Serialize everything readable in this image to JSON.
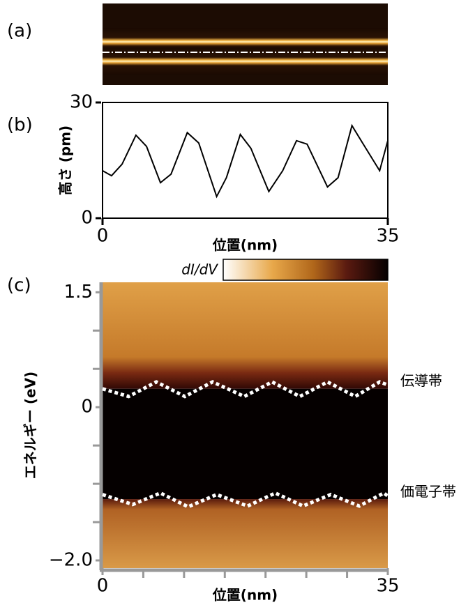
{
  "chart_data": [
    {
      "type": "image",
      "label": "(a)"
    },
    {
      "type": "line",
      "label": "(b)",
      "xlabel": "位置(nm)",
      "ylabel": "高さ (pm)",
      "xlim": [
        0,
        35
      ],
      "ylim": [
        0,
        30
      ],
      "xticks": [
        0,
        35
      ],
      "yticks": [
        0,
        30
      ],
      "series": [
        {
          "color": "#000000",
          "x": [
            0,
            1.1,
            2.4,
            4.1,
            5.4,
            7.1,
            8.4,
            10.4,
            11.8,
            14.0,
            15.2,
            16.9,
            18.2,
            20.4,
            22.1,
            23.8,
            25.1,
            27.6,
            28.9,
            30.6,
            31.9,
            34.0,
            35
          ],
          "values": [
            12.3,
            11,
            14,
            21.5,
            18.6,
            9.2,
            11.4,
            22.2,
            19.5,
            5.6,
            10.5,
            21.7,
            18.1,
            6.9,
            12.3,
            20.1,
            19.2,
            8.1,
            10.5,
            24,
            19.5,
            12.3,
            20.1
          ]
        }
      ]
    },
    {
      "type": "heatmap",
      "label": "(c)",
      "xlabel": "位置(nm)",
      "ylabel": "エネルギー (eV)",
      "colorbar_label": "dI/dV",
      "xlim": [
        0,
        35
      ],
      "ylim": [
        -2.1,
        1.63
      ],
      "xticks": [
        0,
        35
      ],
      "xminor": [
        5,
        10,
        15,
        20,
        25,
        30
      ],
      "yticks": [
        1.5,
        0,
        {
          "value": -2,
          "label": "−2.0"
        }
      ],
      "yminor": [
        1,
        0.5,
        -0.5,
        -1,
        -1.5
      ],
      "series": [
        {
          "name": "伝導帯",
          "color": "#ffffff",
          "x": [
            0,
            3.2,
            6.6,
            10.1,
            13.5,
            17.4,
            20.8,
            24.2,
            27.6,
            31.0,
            34.0,
            35
          ],
          "values": [
            0.24,
            0.14,
            0.33,
            0.14,
            0.33,
            0.14,
            0.33,
            0.14,
            0.33,
            0.14,
            0.33,
            0.29
          ]
        },
        {
          "name": "価電子帯",
          "color": "#ffffff",
          "x": [
            0,
            3.7,
            7.1,
            10.5,
            14.0,
            17.8,
            21.2,
            24.6,
            28.0,
            31.5,
            34.5,
            35
          ],
          "values": [
            -1.14,
            -1.27,
            -1.12,
            -1.3,
            -1.14,
            -1.29,
            -1.12,
            -1.29,
            -1.14,
            -1.29,
            -1.12,
            -1.16
          ]
        }
      ]
    }
  ]
}
